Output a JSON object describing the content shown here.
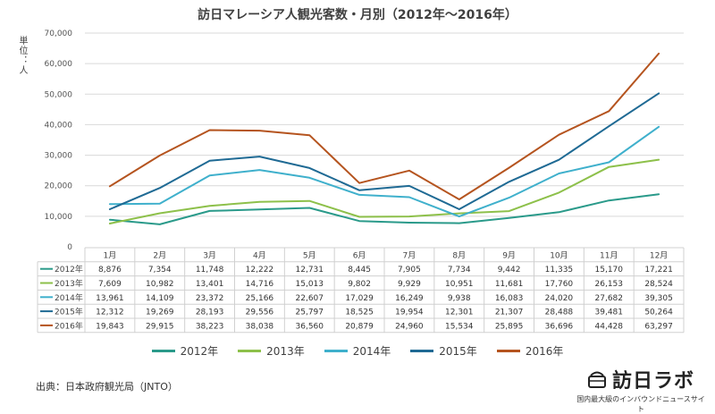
{
  "title": "訪日マレーシア人観光客数・月別（2012年～2016年）",
  "unit_label": "単位：人",
  "source": "出典：日本政府観光局（JNTO）",
  "brand": {
    "name": "訪日ラボ",
    "tagline": "国内最大級のインバウンドニュースサイト",
    "icon": "suitcase-icon"
  },
  "chart_data": {
    "type": "line",
    "title": "訪日マレーシア人観光客数・月別（2012年～2016年）",
    "ylabel": "単位：人",
    "ylim": [
      0,
      70000
    ],
    "yticks": [
      "0",
      "10,000",
      "20,000",
      "30,000",
      "40,000",
      "50,000",
      "60,000",
      "70,000"
    ],
    "ytick_values": [
      0,
      10000,
      20000,
      30000,
      40000,
      50000,
      60000,
      70000
    ],
    "grid": true,
    "legend": "bottom",
    "categories": [
      "1月",
      "2月",
      "3月",
      "4月",
      "5月",
      "6月",
      "7月",
      "8月",
      "9月",
      "10月",
      "11月",
      "12月"
    ],
    "series": [
      {
        "name": "2012年",
        "color": "#2a9a8a",
        "values": [
          8876,
          7354,
          11748,
          12222,
          12731,
          8445,
          7905,
          7734,
          9442,
          11335,
          15170,
          17221
        ],
        "labels": [
          "8,876",
          "7,354",
          "11,748",
          "12,222",
          "12,731",
          "8,445",
          "7,905",
          "7,734",
          "9,442",
          "11,335",
          "15,170",
          "17,221"
        ]
      },
      {
        "name": "2013年",
        "color": "#8dc04a",
        "values": [
          7609,
          10982,
          13401,
          14716,
          15013,
          9802,
          9929,
          10951,
          11681,
          17760,
          26153,
          28524
        ],
        "labels": [
          "7,609",
          "10,982",
          "13,401",
          "14,716",
          "15,013",
          "9,802",
          "9,929",
          "10,951",
          "11,681",
          "17,760",
          "26,153",
          "28,524"
        ]
      },
      {
        "name": "2014年",
        "color": "#3fb0cc",
        "values": [
          13961,
          14109,
          23372,
          25166,
          22607,
          17029,
          16249,
          9938,
          16083,
          24020,
          27682,
          39305
        ],
        "labels": [
          "13,961",
          "14,109",
          "23,372",
          "25,166",
          "22,607",
          "17,029",
          "16,249",
          "9,938",
          "16,083",
          "24,020",
          "27,682",
          "39,305"
        ]
      },
      {
        "name": "2015年",
        "color": "#1f6a94",
        "values": [
          12312,
          19269,
          28193,
          29556,
          25797,
          18525,
          19954,
          12301,
          21307,
          28488,
          39481,
          50264
        ],
        "labels": [
          "12,312",
          "19,269",
          "28,193",
          "29,556",
          "25,797",
          "18,525",
          "19,954",
          "12,301",
          "21,307",
          "28,488",
          "39,481",
          "50,264"
        ]
      },
      {
        "name": "2016年",
        "color": "#b5541f",
        "values": [
          19843,
          29915,
          38223,
          38038,
          36560,
          20879,
          24960,
          15534,
          25895,
          36696,
          44428,
          63297
        ],
        "labels": [
          "19,843",
          "29,915",
          "38,223",
          "38,038",
          "36,560",
          "20,879",
          "24,960",
          "15,534",
          "25,895",
          "36,696",
          "44,428",
          "63,297"
        ]
      }
    ]
  }
}
